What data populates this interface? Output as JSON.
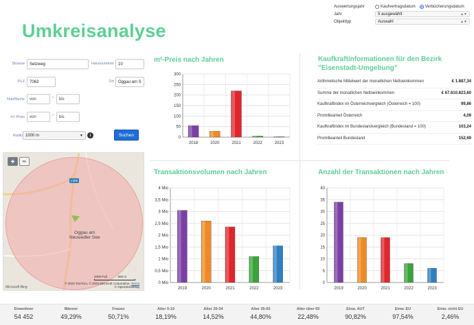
{
  "filters": {
    "auswertungsjahr_label": "Auswertungsjahr",
    "radio_kaufvertrag": "Kaufvertragsdatum",
    "radio_verbuecherung": "Verbücherungsdatum",
    "jahr_label": "Jahr",
    "jahr_value": "5 ausgewählt",
    "objekttyp_label": "Objekttyp",
    "objekttyp_value": "Auswahl"
  },
  "page_title": "Umkreisanalyse",
  "form": {
    "strasse_label": "Strasse",
    "strasse_value": "Setzweg",
    "hausnummer_label": "Hausnummer",
    "hausnummer_value": "10",
    "plz_label": "PLZ",
    "plz_value": "7063",
    "ort_label": "Ort",
    "ort_value": "Oggau am S",
    "nutzflaeche_label": "Nutzfläche",
    "preis_label": "m²-Preis",
    "von_placeholder": "von",
    "bis_placeholder": "bis",
    "dash": "-",
    "radius_label": "Radius",
    "radius_value": "1000 m",
    "info_glyph": "i",
    "search_button": "Suchen"
  },
  "map": {
    "road_label": "L306",
    "town_line1": "Oggau am",
    "town_line2": "Neusiedler See",
    "scale_ft": "2000 Fuß",
    "scale_m": "500 m",
    "copyright": "© 2023 TomTom, © 2023 Microsoft Corporation,",
    "terms": "Terms",
    "osm": "© OpenStreetMap",
    "provider": "Microsoft Bing"
  },
  "panels": {
    "preis_title": "m²-Preis nach Jahren",
    "kaufkraft_title_line1": "Kaufkraftinformationen für den Bezirk",
    "kaufkraft_title_line2": "\"Eisenstadt-Umgebung\"",
    "volumen_title": "Transaktionsvolumen nach Jahren",
    "anzahl_title": "Anzahl der Transaktionen nach Jahren"
  },
  "kaufkraft": [
    {
      "label": "Arithmetische Mittelwert der monatlichen Nettoeinkommen",
      "value": "€ 1.887,34"
    },
    {
      "label": "Summe der monatlichen Nettoeinkommen",
      "value": "€ 67.610.823,60"
    },
    {
      "label": "Kaufkraftindex im Österreichvergleich (Österreich = 100)",
      "value": "99,86"
    },
    {
      "label": "Promilleanteil Österreich",
      "value": "4,09"
    },
    {
      "label": "Kaufkraftindex im Bundeslandvergleich (Bundesland = 100)",
      "value": "103,24"
    },
    {
      "label": "Promilleanteil Bundesland",
      "value": "152,69"
    }
  ],
  "chart_data": [
    {
      "type": "bar",
      "title": "m²-Preis nach Jahren",
      "categories": [
        "2018",
        "2020",
        "2021",
        "2022",
        "2023"
      ],
      "values": [
        55,
        28,
        220,
        5,
        2
      ],
      "colors": [
        "#7b3fa6",
        "#f08a24",
        "#e0262c",
        "#3aa33a",
        "#2f7fc1"
      ],
      "ylim": [
        0,
        300
      ],
      "yticks": [
        "0",
        "50",
        "100",
        "150",
        "200",
        "250",
        "300"
      ]
    },
    {
      "type": "bar",
      "title": "Transaktionsvolumen nach Jahren",
      "categories": [
        "2019",
        "2020",
        "2021",
        "2022",
        "2023"
      ],
      "values": [
        3.05,
        2.6,
        2.35,
        1.1,
        1.55
      ],
      "colors": [
        "#7b3fa6",
        "#f08a24",
        "#e0262c",
        "#3aa33a",
        "#2f7fc1"
      ],
      "ylim": [
        0,
        4
      ],
      "yticks": [
        "0 Mio",
        "0,5 Mio",
        "1 Mio",
        "1,5 Mio",
        "2 Mio",
        "2,5 Mio",
        "3 Mio",
        "3,5 Mio",
        "4 Mio"
      ]
    },
    {
      "type": "bar",
      "title": "Anzahl der Transaktionen nach Jahren",
      "categories": [
        "2019",
        "2020",
        "2021",
        "2022",
        "2023"
      ],
      "values": [
        34,
        19,
        19,
        8,
        6
      ],
      "colors": [
        "#7b3fa6",
        "#f08a24",
        "#e0262c",
        "#3aa33a",
        "#2f7fc1"
      ],
      "ylim": [
        0,
        40
      ],
      "yticks": [
        "0",
        "5",
        "10",
        "15",
        "20",
        "25",
        "30",
        "35",
        "40"
      ]
    }
  ],
  "stats": [
    {
      "label": "Einwohner",
      "value": "54 452"
    },
    {
      "label": "Männer",
      "value": "49,29%"
    },
    {
      "label": "Frauen",
      "value": "50,71%"
    },
    {
      "label": "Alter 0-19",
      "value": "18,19%"
    },
    {
      "label": "Alter 20-34",
      "value": "14,52%"
    },
    {
      "label": "Alter 35-65",
      "value": "44,80%"
    },
    {
      "label": "Alter über 65",
      "value": "22,48%"
    },
    {
      "label": "Einw. AUT",
      "value": "90,82%"
    },
    {
      "label": "Einw. EU",
      "value": "97,54%"
    },
    {
      "label": "Einw. nicht EU",
      "value": "2,46%"
    }
  ]
}
